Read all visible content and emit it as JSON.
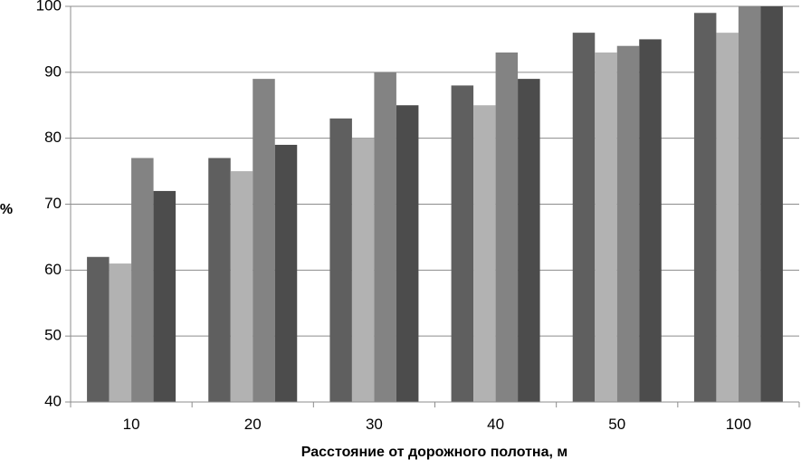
{
  "chart_data": {
    "type": "bar",
    "xlabel": "Расстояние  от дорожного полотна, м",
    "ylabel": "%",
    "ylim": [
      40,
      100
    ],
    "yticks": [
      40,
      50,
      60,
      70,
      80,
      90,
      100
    ],
    "grid": true,
    "legend": "none",
    "categories": [
      "10",
      "20",
      "30",
      "40",
      "50",
      "100"
    ],
    "series": [
      {
        "color": "#5f5f5f",
        "values": [
          62,
          77,
          83,
          88,
          96,
          99
        ]
      },
      {
        "color": "#b2b2b2",
        "values": [
          61,
          75,
          80,
          85,
          93,
          96
        ]
      },
      {
        "color": "#838383",
        "values": [
          77,
          89,
          90,
          93,
          94,
          100
        ]
      },
      {
        "color": "#4c4c4c",
        "values": [
          72,
          79,
          85,
          89,
          95,
          100
        ]
      }
    ]
  }
}
